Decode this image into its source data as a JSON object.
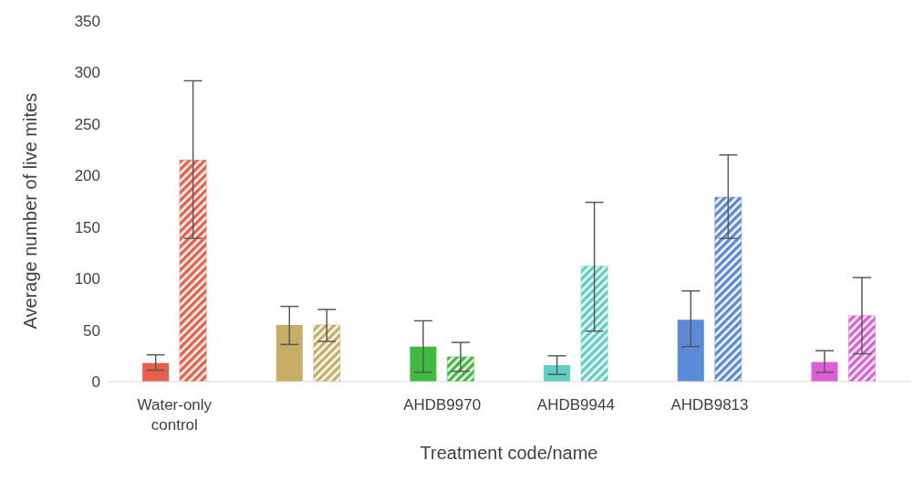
{
  "chart_data": {
    "type": "bar",
    "xlabel": "Treatment code/name",
    "ylabel": "Average number of live mites",
    "categories": [
      "Water-only control",
      null,
      "AHDB9970",
      "AHDB9944",
      "AHDB9813",
      null
    ],
    "series": [
      {
        "colors": [
          "#e8604a",
          "#c8ad64",
          "#3dbb3d",
          "#5ecfc0",
          "#5b8ad8",
          "#df5ed8"
        ],
        "values": [
          18,
          55,
          34,
          16,
          60,
          19
        ],
        "errors": [
          [
            11,
            26
          ],
          [
            36,
            73
          ],
          [
            9,
            59
          ],
          [
            7,
            25
          ],
          [
            34,
            88
          ],
          [
            9,
            30
          ]
        ]
      },
      {
        "colors": [
          "#e8604a",
          "#c8ad64",
          "#3dbb3d",
          "#5ecfc0",
          "#5b8ad8",
          "#df5ed8"
        ],
        "values": [
          215,
          55,
          24,
          112,
          179,
          64
        ],
        "errors": [
          [
            139,
            292
          ],
          [
            39,
            70
          ],
          [
            10,
            38
          ],
          [
            49,
            174
          ],
          [
            139,
            220
          ],
          [
            27,
            101
          ]
        ]
      }
    ],
    "ylim": [
      0,
      350
    ],
    "yticks": [
      0,
      50,
      100,
      150,
      200,
      250,
      300,
      350
    ],
    "grid": false
  }
}
